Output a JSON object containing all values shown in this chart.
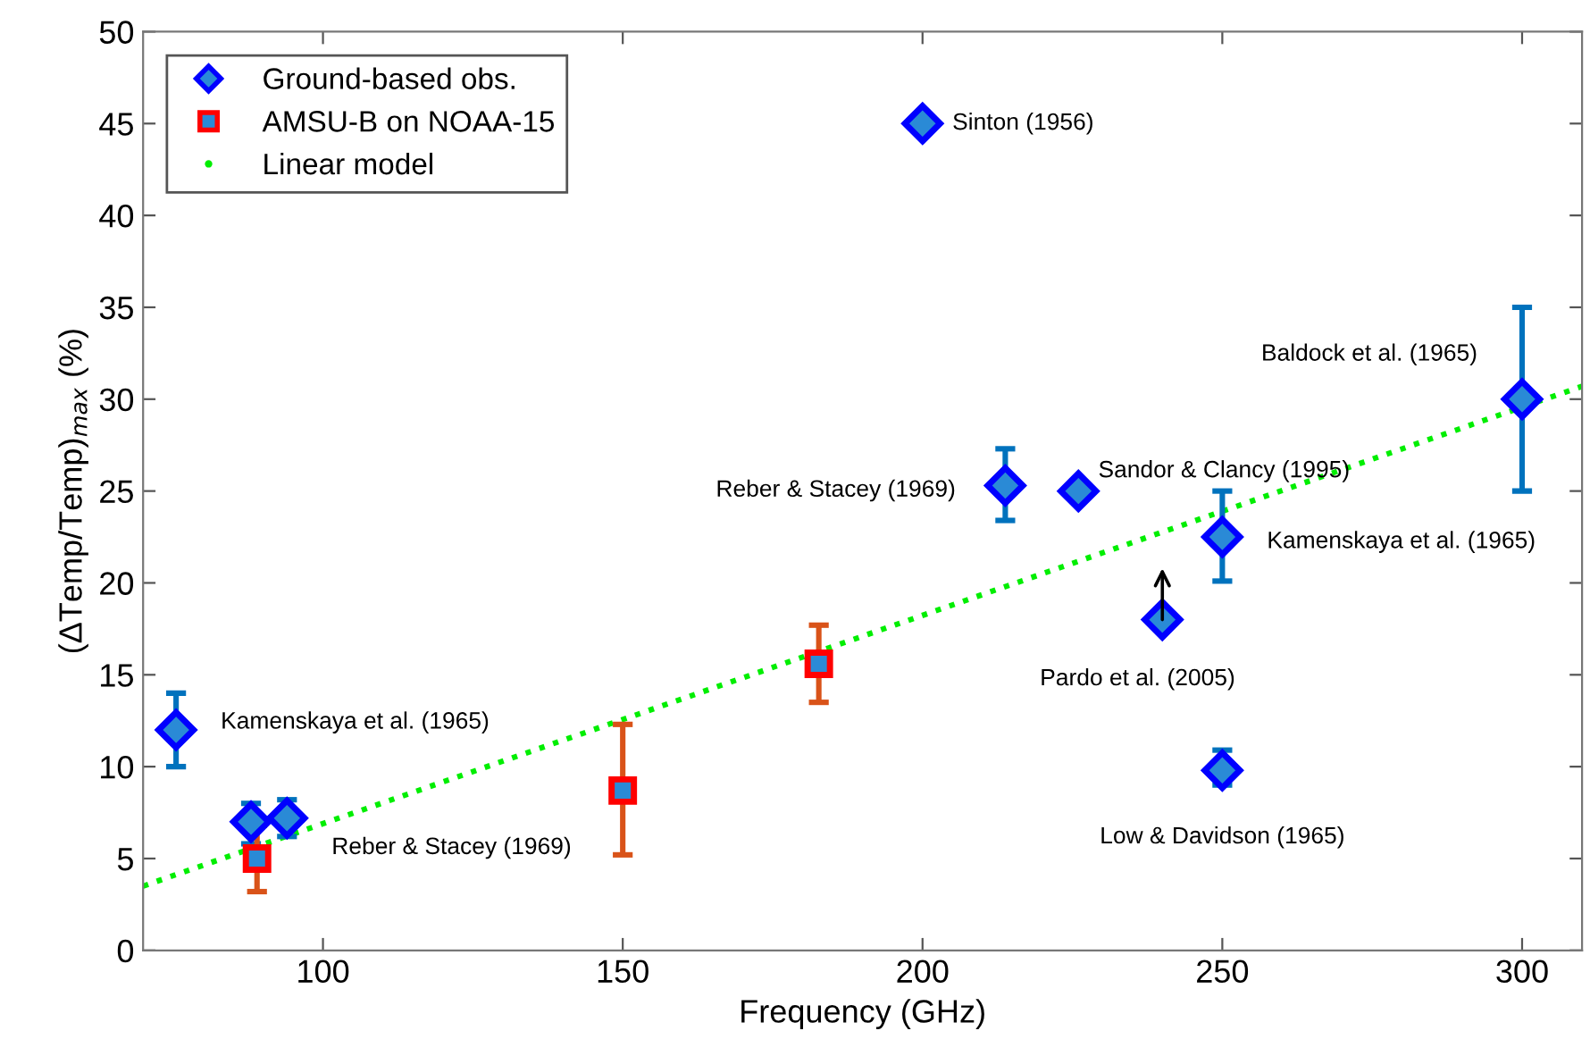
{
  "chart_data": {
    "type": "scatter",
    "xlabel": "Frequency (GHz)",
    "ylabel": "(ΔTemp/Temp)$_{max}$ (%)",
    "xlim": [
      70,
      310
    ],
    "xticks": [
      100,
      150,
      200,
      250,
      300
    ],
    "ylim": [
      0,
      50
    ],
    "yticks": [
      0,
      5,
      10,
      15,
      20,
      25,
      30,
      35,
      40,
      45,
      50
    ],
    "grid": false,
    "legend": "top left",
    "series": [
      {
        "name": "Ground-based obs.",
        "marker": "diamond",
        "color": "#0000ff",
        "x": [
          75.5,
          88,
          94,
          200,
          213.8,
          226,
          240,
          250,
          250,
          300
        ],
        "values": [
          12,
          7,
          7.2,
          45,
          25.3,
          25,
          18,
          22.5,
          9.8,
          30
        ],
        "errors": [
          [
            10,
            14
          ],
          [
            5.8,
            8
          ],
          [
            6.2,
            8.2
          ],
          null,
          [
            23.4,
            27.3
          ],
          null,
          null,
          [
            20.1,
            25
          ],
          [
            9,
            10.9
          ],
          [
            25,
            35
          ]
        ]
      },
      {
        "name": "AMSU-B on NOAA-15",
        "marker": "square",
        "color": "#ff0000",
        "x": [
          89,
          150,
          182.7
        ],
        "values": [
          5,
          8.7,
          15.6
        ],
        "errors": [
          [
            3.2,
            6.8
          ],
          [
            5.2,
            12.3
          ],
          [
            13.5,
            17.7
          ]
        ]
      },
      {
        "name": "Linear model",
        "type": "line",
        "line_style": "dotted",
        "color": "#00ee00",
        "x": [
          70,
          310
        ],
        "values": [
          3.5,
          30.7
        ]
      }
    ],
    "annotations": [
      {
        "text": "Sinton (1956)",
        "x": 200,
        "y": 45
      },
      {
        "text": "Baldock et al. (1965)",
        "x": 300,
        "y": 30
      },
      {
        "text": "Sandor & Clancy (1995)",
        "x": 226,
        "y": 25
      },
      {
        "text": "Reber & Stacey (1969)",
        "x": 213.8,
        "y": 25.3
      },
      {
        "text": "Kamenskaya et al. (1965)",
        "x": 250,
        "y": 22.5
      },
      {
        "text": "Pardo et al. (2005)",
        "x": 240,
        "y": 18
      },
      {
        "text": "Low & Davidson (1965)",
        "x": 250,
        "y": 9.8
      },
      {
        "text": "Kamenskaya et al. (1965)",
        "x": 75.5,
        "y": 12
      },
      {
        "text": "Reber & Stacey (1969)",
        "x": 94,
        "y": 7.2
      }
    ]
  }
}
